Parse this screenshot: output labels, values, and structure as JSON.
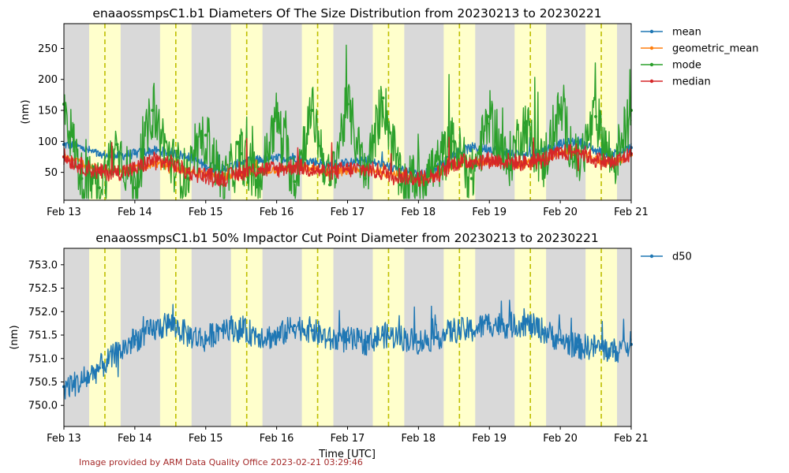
{
  "figure": {
    "credit": "Image provided by ARM Data Quality Office 2023-02-21 03:29:46",
    "xlabel": "Time [UTC]",
    "x_ticks": [
      "Feb 13",
      "Feb 14",
      "Feb 15",
      "Feb 16",
      "Feb 17",
      "Feb 18",
      "Feb 19",
      "Feb 20",
      "Feb 21"
    ],
    "background": {
      "gray": "#d9d9d9",
      "daylight": "#ffffcc",
      "daylight_spans_days": [
        [
          13.356,
          13.8
        ],
        [
          14.356,
          14.8
        ],
        [
          15.356,
          15.8
        ],
        [
          16.356,
          16.8
        ],
        [
          17.356,
          17.8
        ],
        [
          18.356,
          18.8
        ],
        [
          19.356,
          19.8
        ],
        [
          20.356,
          20.8
        ]
      ],
      "noon_lines_days": [
        13.578,
        14.578,
        15.578,
        16.578,
        17.578,
        18.578,
        19.578,
        20.578
      ],
      "noon_line_color": "#bfbf00"
    }
  },
  "chart_data": [
    {
      "type": "line",
      "title": "enaaossmpsC1.b1 Diameters Of The Size Distribution from 20230213 to 20230221",
      "xlabel": "",
      "ylabel": "(nm)",
      "xlim": [
        "2023-02-13",
        "2023-02-21"
      ],
      "ylim": [
        5,
        290
      ],
      "yticks": [
        50,
        100,
        150,
        200,
        250
      ],
      "legend_placement": "outside-right",
      "x_days": [
        13.0,
        13.25,
        13.5,
        13.75,
        14.0,
        14.25,
        14.5,
        14.75,
        15.0,
        15.25,
        15.5,
        15.75,
        16.0,
        16.25,
        16.5,
        16.75,
        17.0,
        17.25,
        17.5,
        17.75,
        18.0,
        18.25,
        18.5,
        18.75,
        19.0,
        19.25,
        19.5,
        19.75,
        20.0,
        20.25,
        20.5,
        20.75,
        21.0
      ],
      "series": [
        {
          "name": "mean",
          "color": "#1f77b4",
          "values": [
            95,
            90,
            78,
            76,
            80,
            85,
            82,
            75,
            60,
            55,
            65,
            70,
            72,
            75,
            68,
            62,
            65,
            68,
            62,
            55,
            45,
            55,
            80,
            90,
            88,
            82,
            78,
            85,
            95,
            100,
            85,
            80,
            90
          ]
        },
        {
          "name": "geometric_mean",
          "color": "#ff7f0e",
          "values": [
            75,
            65,
            55,
            52,
            55,
            65,
            60,
            52,
            45,
            42,
            48,
            52,
            55,
            58,
            55,
            50,
            52,
            55,
            50,
            45,
            38,
            45,
            62,
            65,
            68,
            65,
            62,
            68,
            80,
            85,
            70,
            65,
            78
          ]
        },
        {
          "name": "mode",
          "color": "#2ca02c",
          "values": [
            160,
            40,
            25,
            95,
            25,
            150,
            70,
            40,
            110,
            30,
            80,
            30,
            140,
            35,
            150,
            30,
            160,
            40,
            170,
            30,
            40,
            60,
            100,
            40,
            140,
            60,
            130,
            60,
            150,
            60,
            140,
            60,
            150
          ]
        },
        {
          "name": "median",
          "color": "#d62728",
          "values": [
            75,
            60,
            50,
            50,
            55,
            70,
            65,
            50,
            45,
            40,
            50,
            55,
            55,
            60,
            55,
            50,
            55,
            55,
            50,
            45,
            40,
            45,
            65,
            68,
            70,
            68,
            65,
            70,
            80,
            85,
            70,
            65,
            80
          ]
        }
      ]
    },
    {
      "type": "line",
      "title": "enaaossmpsC1.b1 50% Impactor Cut Point Diameter from 20230213 to 20230221",
      "xlabel": "Time [UTC]",
      "ylabel": "(nm)",
      "xlim": [
        "2023-02-13",
        "2023-02-21"
      ],
      "ylim": [
        749.55,
        753.35
      ],
      "yticks": [
        750.0,
        750.5,
        751.0,
        751.5,
        752.0,
        752.5,
        753.0
      ],
      "legend_placement": "outside-right",
      "x_days": [
        13.0,
        13.25,
        13.5,
        13.75,
        14.0,
        14.25,
        14.5,
        14.75,
        15.0,
        15.25,
        15.5,
        15.75,
        16.0,
        16.25,
        16.5,
        16.75,
        17.0,
        17.25,
        17.5,
        17.75,
        18.0,
        18.25,
        18.5,
        18.75,
        19.0,
        19.25,
        19.5,
        19.75,
        20.0,
        20.25,
        20.5,
        20.75,
        21.0
      ],
      "series": [
        {
          "name": "d50",
          "color": "#1f77b4",
          "values": [
            750.4,
            750.5,
            750.8,
            751.1,
            751.4,
            751.6,
            751.75,
            751.5,
            751.4,
            751.7,
            751.6,
            751.5,
            751.45,
            751.7,
            751.6,
            751.4,
            751.4,
            751.35,
            751.5,
            751.45,
            751.35,
            751.45,
            751.6,
            751.6,
            751.75,
            751.7,
            751.75,
            751.6,
            751.4,
            751.25,
            751.25,
            751.15,
            751.3
          ]
        }
      ]
    }
  ]
}
